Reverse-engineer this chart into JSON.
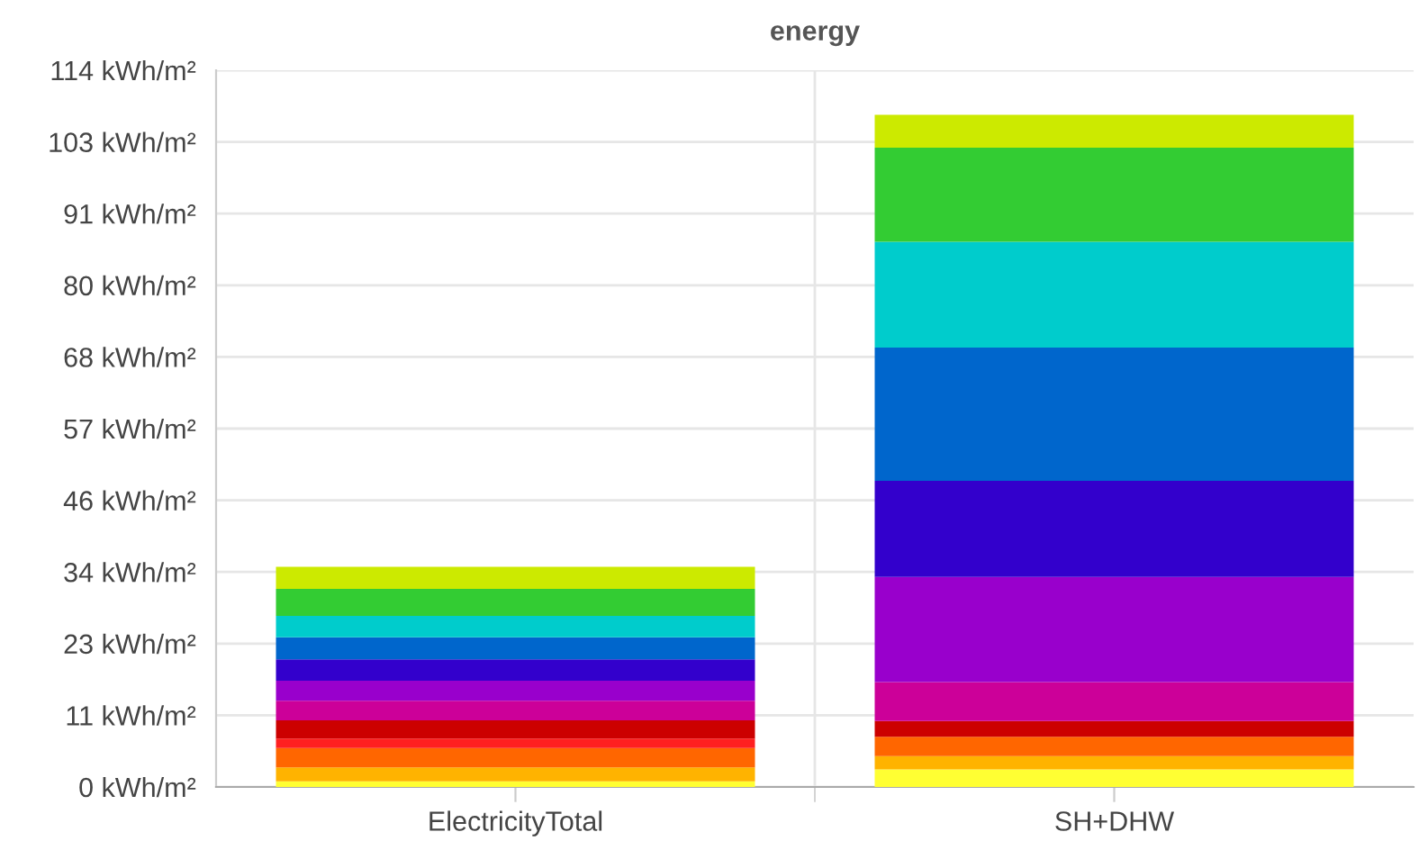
{
  "chart_data": {
    "type": "bar",
    "title": "energy",
    "stacked": true,
    "categories": [
      "ElectricityTotal",
      "SH+DHW"
    ],
    "series": [
      {
        "color": "#ffff33",
        "values": [
          0.9,
          2.8
        ]
      },
      {
        "color": "#ffb300",
        "values": [
          2.2,
          2.1
        ]
      },
      {
        "color": "#ff6600",
        "values": [
          3.1,
          3.1
        ]
      },
      {
        "color": "#ff2020",
        "values": [
          1.5,
          0
        ]
      },
      {
        "color": "#cc0000",
        "values": [
          2.9,
          2.5
        ]
      },
      {
        "color": "#cc0099",
        "values": [
          3.1,
          6.2
        ]
      },
      {
        "color": "#9900cc",
        "values": [
          3.2,
          16.7
        ]
      },
      {
        "color": "#3300cc",
        "values": [
          3.4,
          15.3
        ]
      },
      {
        "color": "#0066cc",
        "values": [
          3.5,
          21.2
        ]
      },
      {
        "color": "#00cccc",
        "values": [
          3.4,
          16.8
        ]
      },
      {
        "color": "#33cc33",
        "values": [
          4.3,
          15.0
        ]
      },
      {
        "color": "#ccea00",
        "values": [
          3.5,
          5.2
        ]
      }
    ],
    "ylim": [
      0,
      114
    ],
    "yticks": [
      {
        "value": 0,
        "label": "0 kWh/m²"
      },
      {
        "value": 11.4,
        "label": "11 kWh/m²"
      },
      {
        "value": 22.8,
        "label": "23 kWh/m²"
      },
      {
        "value": 34.2,
        "label": "34 kWh/m²"
      },
      {
        "value": 45.6,
        "label": "46 kWh/m²"
      },
      {
        "value": 57,
        "label": "57 kWh/m²"
      },
      {
        "value": 68.4,
        "label": "68 kWh/m²"
      },
      {
        "value": 79.8,
        "label": "80 kWh/m²"
      },
      {
        "value": 91.2,
        "label": "91 kWh/m²"
      },
      {
        "value": 102.6,
        "label": "103 kWh/m²"
      },
      {
        "value": 114,
        "label": "114 kWh/m²"
      }
    ],
    "grid": true
  }
}
